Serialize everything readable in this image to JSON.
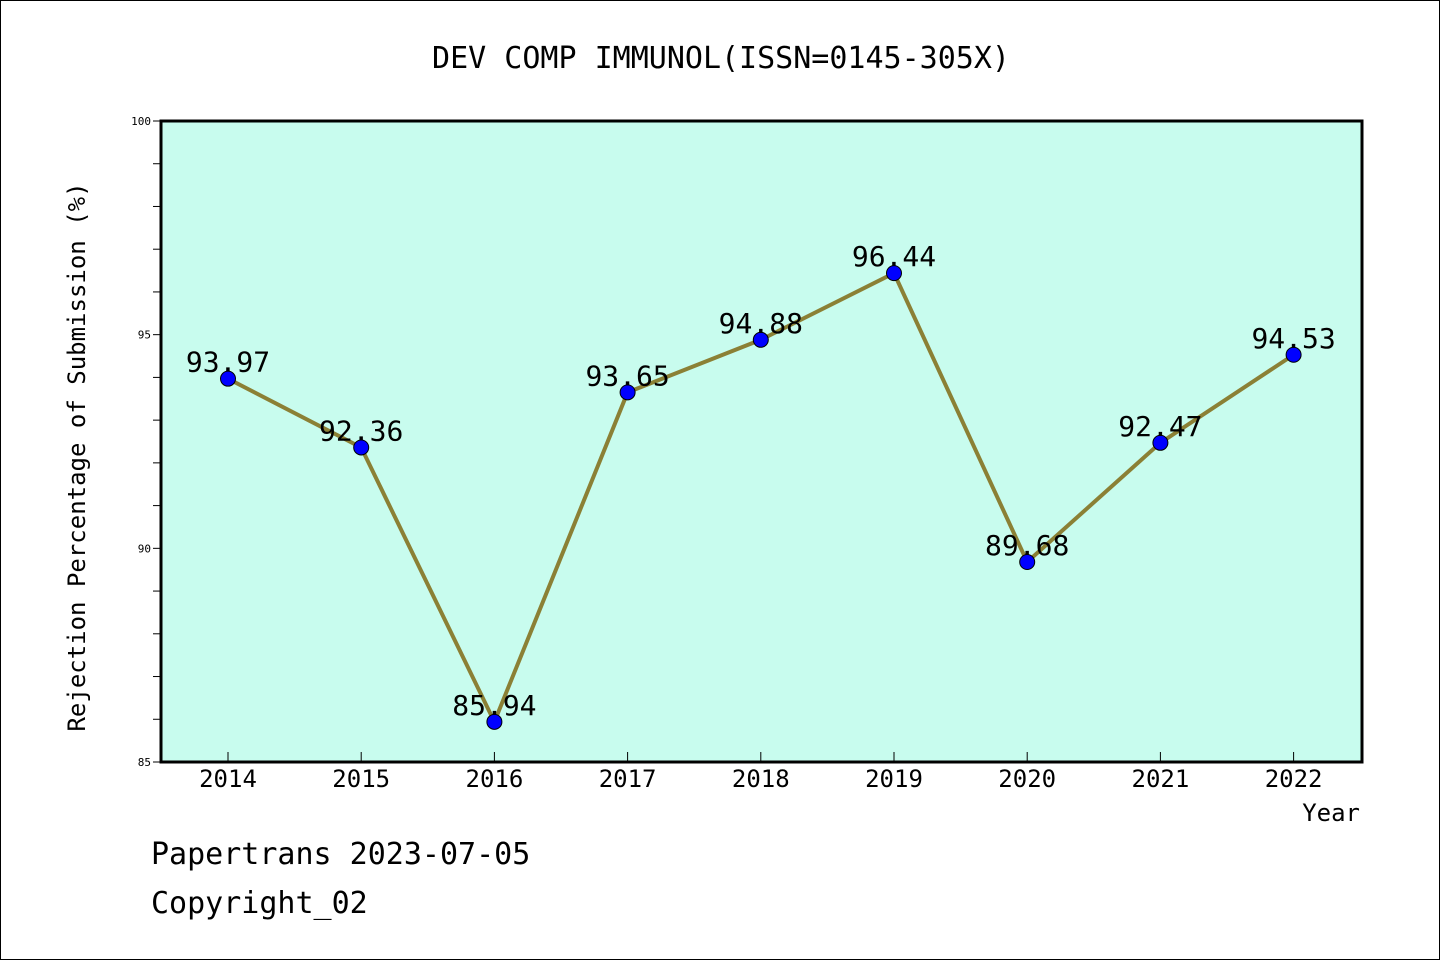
{
  "chart_data": {
    "type": "line",
    "title": "DEV COMP IMMUNOL(ISSN=0145-305X)",
    "xlabel": "Year",
    "ylabel": "Rejection Percentage of Submission (%)",
    "categories": [
      "2014",
      "2015",
      "2016",
      "2017",
      "2018",
      "2019",
      "2020",
      "2021",
      "2022"
    ],
    "series": [
      {
        "values": [
          93.97,
          92.36,
          85.94,
          93.65,
          94.88,
          96.44,
          89.68,
          92.47,
          94.53
        ]
      }
    ],
    "data_labels": [
      "93.97",
      "92.36",
      "85.94",
      "93.65",
      "94.88",
      "96.44",
      "89.68",
      "92.47",
      "94.53"
    ],
    "ylim": [
      85,
      100
    ],
    "y_ticks": [
      "85",
      "90",
      "95",
      "100"
    ],
    "y_minor_step": 1,
    "grid": false,
    "colors": {
      "plot_background": "#c8fcee",
      "line": "#8b8035",
      "marker": "#0000ff"
    }
  },
  "footer": {
    "line1": "Papertrans 2023-07-05",
    "line2": "Copyright_02"
  }
}
